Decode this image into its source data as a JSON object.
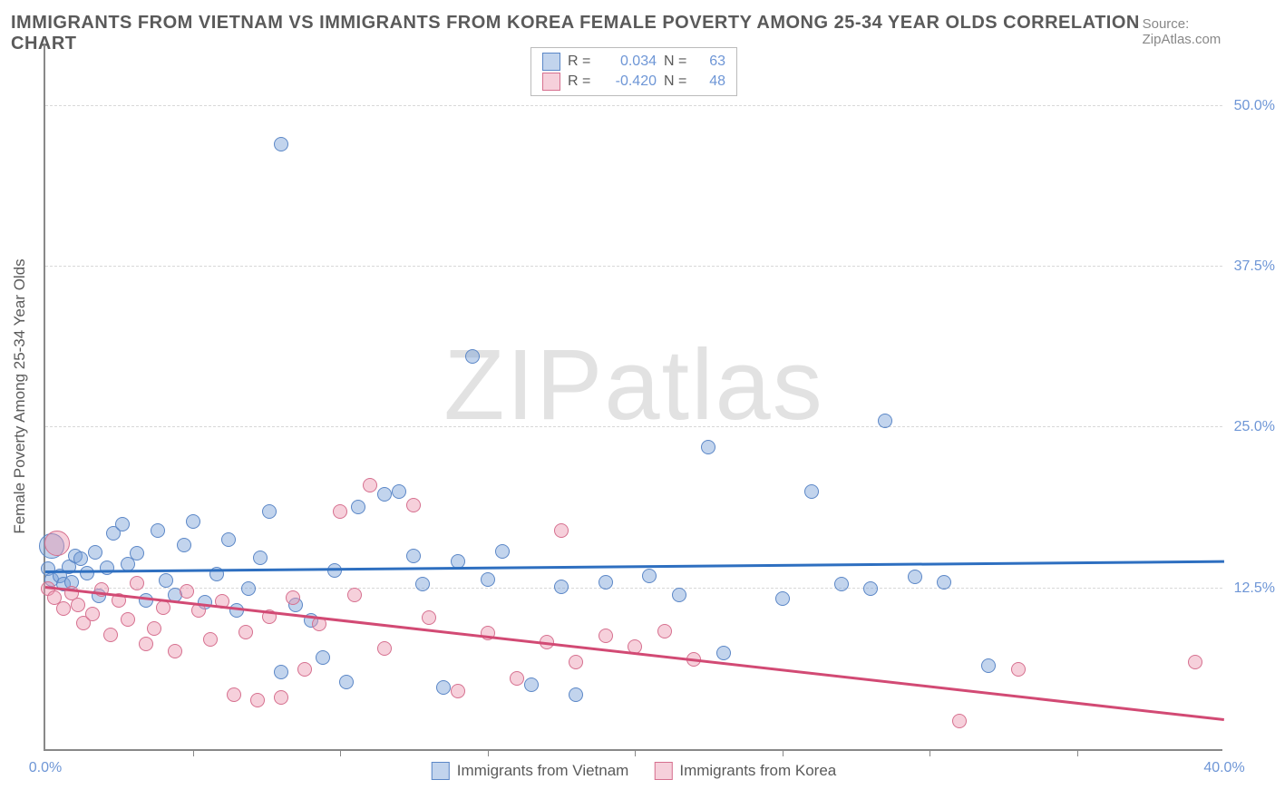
{
  "title": "IMMIGRANTS FROM VIETNAM VS IMMIGRANTS FROM KOREA FEMALE POVERTY AMONG 25-34 YEAR OLDS CORRELATION CHART",
  "source": "Source: ZipAtlas.com",
  "ylabel": "Female Poverty Among 25-34 Year Olds",
  "watermark_zip": "ZIP",
  "watermark_atlas": "atlas",
  "chart": {
    "type": "scatter",
    "xlim": [
      0,
      40
    ],
    "ylim": [
      0,
      55
    ],
    "x_ticks_minor": [
      5,
      10,
      15,
      20,
      25,
      30,
      35
    ],
    "x_tick_labels": [
      {
        "x": 0,
        "label": "0.0%"
      },
      {
        "x": 40,
        "label": "40.0%"
      }
    ],
    "y_ticks": [
      {
        "y": 12.5,
        "label": "12.5%"
      },
      {
        "y": 25.0,
        "label": "25.0%"
      },
      {
        "y": 37.5,
        "label": "37.5%"
      },
      {
        "y": 50.0,
        "label": "50.0%"
      }
    ],
    "grid_color": "#d8d8d8",
    "background_color": "#ffffff",
    "axis_color": "#888888"
  },
  "series": [
    {
      "name": "Immigrants from Vietnam",
      "fill": "rgba(120,160,215,0.45)",
      "stroke": "#5b87c7",
      "line_color": "#2e6fc0",
      "R": "0.034",
      "N": "63",
      "trend": {
        "x1": 0,
        "y1": 14.0,
        "x2": 40,
        "y2": 14.8
      },
      "marker_radius": 8,
      "points": [
        [
          0.1,
          14.0
        ],
        [
          0.2,
          13.2
        ],
        [
          0.2,
          15.8,
          14
        ],
        [
          0.5,
          13.5
        ],
        [
          0.6,
          12.8
        ],
        [
          0.8,
          14.2
        ],
        [
          0.9,
          13.0
        ],
        [
          1.0,
          15.0
        ],
        [
          1.2,
          14.8
        ],
        [
          1.4,
          13.7
        ],
        [
          1.7,
          15.3
        ],
        [
          1.8,
          11.9
        ],
        [
          2.1,
          14.1
        ],
        [
          2.3,
          16.8
        ],
        [
          2.6,
          17.5
        ],
        [
          2.8,
          14.4
        ],
        [
          3.1,
          15.2
        ],
        [
          3.4,
          11.6
        ],
        [
          3.8,
          17.0
        ],
        [
          4.1,
          13.1
        ],
        [
          4.4,
          12.0
        ],
        [
          4.7,
          15.9
        ],
        [
          5.0,
          17.7
        ],
        [
          5.4,
          11.4
        ],
        [
          5.8,
          13.6
        ],
        [
          6.2,
          16.3
        ],
        [
          6.5,
          10.8
        ],
        [
          6.9,
          12.5
        ],
        [
          7.3,
          14.9
        ],
        [
          7.6,
          18.5
        ],
        [
          8.0,
          6.0
        ],
        [
          8.0,
          47.0
        ],
        [
          8.5,
          11.2
        ],
        [
          9.0,
          10.0
        ],
        [
          9.4,
          7.1
        ],
        [
          9.8,
          13.9
        ],
        [
          10.2,
          5.2
        ],
        [
          10.6,
          18.8
        ],
        [
          11.5,
          19.8
        ],
        [
          12.0,
          20.0
        ],
        [
          12.5,
          15.0
        ],
        [
          12.8,
          12.8
        ],
        [
          13.5,
          4.8
        ],
        [
          14.0,
          14.6
        ],
        [
          14.5,
          30.5
        ],
        [
          15.0,
          13.2
        ],
        [
          15.5,
          15.4
        ],
        [
          16.5,
          5.0
        ],
        [
          17.5,
          12.6
        ],
        [
          18.0,
          4.2
        ],
        [
          19.0,
          13.0
        ],
        [
          20.5,
          13.5
        ],
        [
          21.5,
          12.0
        ],
        [
          22.5,
          23.5
        ],
        [
          23.0,
          7.5
        ],
        [
          25.0,
          11.7
        ],
        [
          26.0,
          20.0
        ],
        [
          27.0,
          12.8
        ],
        [
          28.0,
          12.5
        ],
        [
          28.5,
          25.5
        ],
        [
          29.5,
          13.4
        ],
        [
          30.5,
          13.0
        ],
        [
          32.0,
          6.5
        ]
      ]
    },
    {
      "name": "Immigrants from Korea",
      "fill": "rgba(235,150,175,0.45)",
      "stroke": "#d6708f",
      "line_color": "#d24a74",
      "R": "-0.420",
      "N": "48",
      "trend": {
        "x1": 0,
        "y1": 12.8,
        "x2": 40,
        "y2": 2.5
      },
      "marker_radius": 8,
      "points": [
        [
          0.1,
          12.5
        ],
        [
          0.3,
          11.8
        ],
        [
          0.4,
          16.0,
          14
        ],
        [
          0.6,
          10.9
        ],
        [
          0.9,
          12.1
        ],
        [
          1.1,
          11.2
        ],
        [
          1.3,
          9.8
        ],
        [
          1.6,
          10.5
        ],
        [
          1.9,
          12.4
        ],
        [
          2.2,
          8.9
        ],
        [
          2.5,
          11.6
        ],
        [
          2.8,
          10.1
        ],
        [
          3.1,
          12.9
        ],
        [
          3.4,
          8.2
        ],
        [
          3.7,
          9.4
        ],
        [
          4.0,
          11.0
        ],
        [
          4.4,
          7.6
        ],
        [
          4.8,
          12.3
        ],
        [
          5.2,
          10.8
        ],
        [
          5.6,
          8.5
        ],
        [
          6.0,
          11.5
        ],
        [
          6.4,
          4.2
        ],
        [
          6.8,
          9.1
        ],
        [
          7.2,
          3.8
        ],
        [
          7.6,
          10.3
        ],
        [
          8.0,
          4.0
        ],
        [
          8.4,
          11.8
        ],
        [
          8.8,
          6.2
        ],
        [
          9.3,
          9.7
        ],
        [
          10.0,
          18.5
        ],
        [
          10.5,
          12.0
        ],
        [
          11.0,
          20.5
        ],
        [
          11.5,
          7.8
        ],
        [
          12.5,
          19.0
        ],
        [
          13.0,
          10.2
        ],
        [
          14.0,
          4.5
        ],
        [
          15.0,
          9.0
        ],
        [
          16.0,
          5.5
        ],
        [
          17.0,
          8.3
        ],
        [
          17.5,
          17.0
        ],
        [
          18.0,
          6.8
        ],
        [
          19.0,
          8.8
        ],
        [
          20.0,
          8.0
        ],
        [
          21.0,
          9.2
        ],
        [
          22.0,
          7.0
        ],
        [
          31.0,
          2.2
        ],
        [
          33.0,
          6.2
        ],
        [
          39.0,
          6.8
        ]
      ]
    }
  ],
  "legend_top": {
    "R_label": "R =",
    "N_label": "N ="
  }
}
